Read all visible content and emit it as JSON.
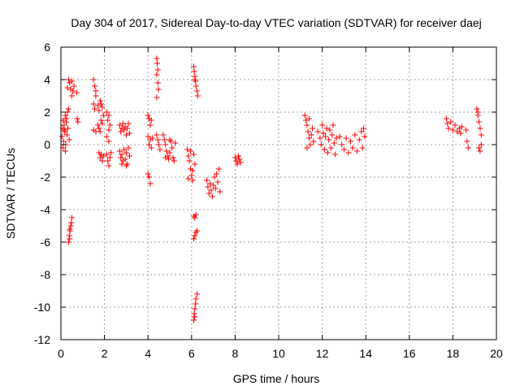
{
  "chart_data": {
    "type": "scatter",
    "title": "Day 304 of 2017, Sidereal Day-to-day VTEC variation (SDTVAR) for receiver daej",
    "xlabel": "GPS time / hours",
    "ylabel": "SDTVAR / TECUs",
    "xlim": [
      0,
      20
    ],
    "ylim": [
      -12,
      6
    ],
    "xticks": [
      "0",
      "2",
      "4",
      "6",
      "8",
      "10",
      "12",
      "14",
      "16",
      "18",
      "20"
    ],
    "yticks": [
      "6",
      "4",
      "2",
      "0",
      "-2",
      "-4",
      "-6",
      "-8",
      "-10",
      "-12"
    ],
    "grid": true,
    "marker": "+",
    "color": "#ff0000",
    "series": [
      {
        "name": "SDTVAR",
        "points": [
          [
            0.05,
            0.5
          ],
          [
            0.08,
            1.0
          ],
          [
            0.1,
            1.5
          ],
          [
            0.12,
            0.2
          ],
          [
            0.15,
            1.2
          ],
          [
            0.18,
            0.8
          ],
          [
            0.2,
            1.8
          ],
          [
            0.22,
            0.0
          ],
          [
            0.25,
            1.4
          ],
          [
            0.28,
            0.6
          ],
          [
            0.3,
            2.0
          ],
          [
            0.32,
            1.0
          ],
          [
            0.35,
            2.2
          ],
          [
            0.38,
            0.3
          ],
          [
            0.1,
            -0.2
          ],
          [
            0.2,
            -0.4
          ],
          [
            0.15,
            0.9
          ],
          [
            0.25,
            1.6
          ],
          [
            0.3,
            3.5
          ],
          [
            0.35,
            4.0
          ],
          [
            0.4,
            3.8
          ],
          [
            0.45,
            3.4
          ],
          [
            0.5,
            3.0
          ],
          [
            0.5,
            3.9
          ],
          [
            0.55,
            3.3
          ],
          [
            0.6,
            3.6
          ],
          [
            0.72,
            3.2
          ],
          [
            0.75,
            1.6
          ],
          [
            0.78,
            1.4
          ],
          [
            0.35,
            -6.0
          ],
          [
            0.38,
            -5.6
          ],
          [
            0.4,
            -5.8
          ],
          [
            0.42,
            -5.3
          ],
          [
            0.45,
            -5.0
          ],
          [
            0.48,
            -4.8
          ],
          [
            0.5,
            -4.5
          ],
          [
            0.4,
            -5.2
          ],
          [
            1.5,
            4.0
          ],
          [
            1.55,
            3.6
          ],
          [
            1.6,
            3.3
          ],
          [
            1.5,
            2.5
          ],
          [
            1.55,
            2.2
          ],
          [
            1.6,
            3.0
          ],
          [
            1.5,
            0.9
          ],
          [
            1.6,
            0.8
          ],
          [
            1.7,
            2.4
          ],
          [
            1.75,
            2.1
          ],
          [
            1.8,
            2.7
          ],
          [
            1.85,
            2.5
          ],
          [
            1.9,
            2.3
          ],
          [
            1.95,
            1.8
          ],
          [
            1.7,
            1.2
          ],
          [
            1.75,
            1.0
          ],
          [
            1.8,
            0.8
          ],
          [
            1.85,
            1.5
          ],
          [
            1.9,
            1.3
          ],
          [
            1.75,
            -0.5
          ],
          [
            1.8,
            -0.8
          ],
          [
            1.85,
            -0.6
          ],
          [
            1.9,
            -1.0
          ],
          [
            1.95,
            -0.7
          ],
          [
            2.1,
            2.0
          ],
          [
            2.15,
            1.5
          ],
          [
            2.2,
            1.8
          ],
          [
            2.1,
            0.5
          ],
          [
            2.2,
            0.9
          ],
          [
            2.25,
            1.2
          ],
          [
            2.1,
            -0.6
          ],
          [
            2.15,
            -1.0
          ],
          [
            2.2,
            -1.3
          ],
          [
            2.25,
            -0.8
          ],
          [
            2.3,
            -0.5
          ],
          [
            2.2,
            0.2
          ],
          [
            2.7,
            1.2
          ],
          [
            2.75,
            0.8
          ],
          [
            2.8,
            1.0
          ],
          [
            2.85,
            1.3
          ],
          [
            2.9,
            0.9
          ],
          [
            2.95,
            1.1
          ],
          [
            3.0,
            0.6
          ],
          [
            3.05,
            1.0
          ],
          [
            3.1,
            1.3
          ],
          [
            3.15,
            0.7
          ],
          [
            2.7,
            -0.4
          ],
          [
            2.75,
            -0.8
          ],
          [
            2.8,
            -0.6
          ],
          [
            2.85,
            -1.0
          ],
          [
            2.9,
            -0.3
          ],
          [
            2.95,
            -0.9
          ],
          [
            3.0,
            -0.5
          ],
          [
            3.05,
            -1.2
          ],
          [
            3.1,
            -0.2
          ],
          [
            3.15,
            -0.7
          ],
          [
            2.8,
            -1.2
          ],
          [
            3.0,
            -1.3
          ],
          [
            4.0,
            1.8
          ],
          [
            4.05,
            1.6
          ],
          [
            4.1,
            1.2
          ],
          [
            4.15,
            1.5
          ],
          [
            4.0,
            0.5
          ],
          [
            4.05,
            0.0
          ],
          [
            4.1,
            0.3
          ],
          [
            4.15,
            -0.2
          ],
          [
            4.2,
            0.4
          ],
          [
            4.0,
            -1.8
          ],
          [
            4.05,
            -2.0
          ],
          [
            4.1,
            -2.4
          ],
          [
            4.4,
            5.3
          ],
          [
            4.42,
            5.0
          ],
          [
            4.45,
            4.6
          ],
          [
            4.4,
            4.3
          ],
          [
            4.45,
            3.8
          ],
          [
            4.48,
            3.4
          ],
          [
            4.4,
            2.9
          ],
          [
            4.45,
            0.3
          ],
          [
            4.5,
            0.0
          ],
          [
            4.55,
            -0.3
          ],
          [
            4.4,
            0.6
          ],
          [
            4.7,
            0.6
          ],
          [
            4.75,
            0.3
          ],
          [
            4.8,
            0.0
          ],
          [
            4.85,
            -0.4
          ],
          [
            4.9,
            -0.7
          ],
          [
            4.95,
            -0.9
          ],
          [
            5.0,
            -0.5
          ],
          [
            5.05,
            0.2
          ],
          [
            5.1,
            -0.2
          ],
          [
            5.15,
            -0.8
          ],
          [
            5.2,
            -1.0
          ],
          [
            5.25,
            0.1
          ],
          [
            4.8,
            -0.8
          ],
          [
            5.0,
            0.3
          ],
          [
            5.8,
            -0.3
          ],
          [
            5.85,
            -0.7
          ],
          [
            5.9,
            -1.0
          ],
          [
            5.95,
            -1.5
          ],
          [
            6.0,
            -1.9
          ],
          [
            6.05,
            -2.2
          ],
          [
            6.1,
            -0.6
          ],
          [
            6.15,
            -1.2
          ],
          [
            5.85,
            -2.1
          ],
          [
            5.95,
            -0.4
          ],
          [
            6.05,
            -1.6
          ],
          [
            6.1,
            4.8
          ],
          [
            6.12,
            4.5
          ],
          [
            6.15,
            4.2
          ],
          [
            6.18,
            3.9
          ],
          [
            6.2,
            3.6
          ],
          [
            6.25,
            3.3
          ],
          [
            6.28,
            3.0
          ],
          [
            6.15,
            4.0
          ],
          [
            6.1,
            -4.4
          ],
          [
            6.15,
            -4.5
          ],
          [
            6.2,
            -4.3
          ],
          [
            6.1,
            -5.8
          ],
          [
            6.15,
            -5.6
          ],
          [
            6.2,
            -5.4
          ],
          [
            6.25,
            -5.3
          ],
          [
            6.1,
            -10.8
          ],
          [
            6.12,
            -10.4
          ],
          [
            6.15,
            -10.1
          ],
          [
            6.18,
            -9.8
          ],
          [
            6.2,
            -9.5
          ],
          [
            6.25,
            -9.2
          ],
          [
            6.15,
            -10.6
          ],
          [
            6.7,
            -2.2
          ],
          [
            6.75,
            -2.6
          ],
          [
            6.8,
            -3.0
          ],
          [
            6.85,
            -2.4
          ],
          [
            6.9,
            -2.8
          ],
          [
            6.95,
            -3.2
          ],
          [
            7.0,
            -2.5
          ],
          [
            7.05,
            -2.0
          ],
          [
            7.1,
            -2.7
          ],
          [
            7.15,
            -1.8
          ],
          [
            7.2,
            -2.3
          ],
          [
            7.25,
            -1.5
          ],
          [
            7.3,
            -2.9
          ],
          [
            8.0,
            -0.8
          ],
          [
            8.05,
            -1.0
          ],
          [
            8.1,
            -1.2
          ],
          [
            8.15,
            -0.7
          ],
          [
            8.2,
            -0.9
          ],
          [
            8.25,
            -1.1
          ],
          [
            11.2,
            1.8
          ],
          [
            11.25,
            1.5
          ],
          [
            11.3,
            1.2
          ],
          [
            11.35,
            0.8
          ],
          [
            11.4,
            0.4
          ],
          [
            11.45,
            0.0
          ],
          [
            11.5,
            0.6
          ],
          [
            11.55,
            1.0
          ],
          [
            11.6,
            0.2
          ],
          [
            11.3,
            -0.2
          ],
          [
            11.4,
            1.6
          ],
          [
            11.8,
            0.8
          ],
          [
            11.9,
            0.4
          ],
          [
            11.95,
            0.0
          ],
          [
            12.0,
            1.2
          ],
          [
            12.05,
            0.7
          ],
          [
            12.1,
            -0.3
          ],
          [
            12.15,
            0.5
          ],
          [
            12.2,
            1.0
          ],
          [
            12.25,
            -0.5
          ],
          [
            12.3,
            0.3
          ],
          [
            12.35,
            0.9
          ],
          [
            12.4,
            -0.2
          ],
          [
            12.45,
            0.6
          ],
          [
            12.5,
            1.2
          ],
          [
            12.55,
            0.1
          ],
          [
            12.6,
            -0.6
          ],
          [
            12.65,
            0.4
          ],
          [
            12.8,
            0.5
          ],
          [
            12.9,
            0.0
          ],
          [
            13.0,
            -0.3
          ],
          [
            13.1,
            0.4
          ],
          [
            13.2,
            -0.5
          ],
          [
            13.3,
            0.2
          ],
          [
            13.4,
            -0.2
          ],
          [
            13.5,
            0.6
          ],
          [
            13.6,
            -0.4
          ],
          [
            13.7,
            0.3
          ],
          [
            13.8,
            0.8
          ],
          [
            13.9,
            1.0
          ],
          [
            13.85,
            -0.2
          ],
          [
            13.95,
            0.5
          ],
          [
            17.7,
            1.6
          ],
          [
            17.75,
            1.3
          ],
          [
            17.8,
            1.0
          ],
          [
            17.9,
            1.4
          ],
          [
            18.0,
            0.9
          ],
          [
            18.1,
            1.2
          ],
          [
            18.2,
            0.8
          ],
          [
            18.3,
            1.0
          ],
          [
            18.35,
            0.7
          ],
          [
            18.4,
            1.1
          ],
          [
            18.6,
            0.9
          ],
          [
            18.65,
            0.2
          ],
          [
            18.7,
            -0.2
          ],
          [
            19.1,
            2.2
          ],
          [
            19.15,
            1.8
          ],
          [
            19.2,
            1.4
          ],
          [
            19.25,
            1.0
          ],
          [
            19.3,
            0.6
          ],
          [
            19.15,
            2.0
          ],
          [
            19.2,
            -0.2
          ],
          [
            19.25,
            -0.4
          ],
          [
            19.3,
            0.0
          ]
        ]
      }
    ]
  }
}
